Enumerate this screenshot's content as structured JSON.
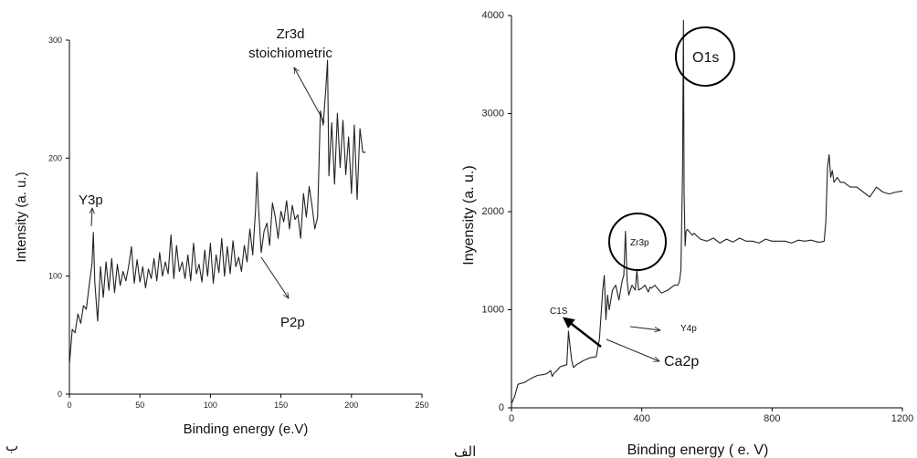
{
  "chart_data": [
    {
      "type": "line",
      "panel_label": "ب",
      "xlabel": "Binding energy (e.V)",
      "ylabel": "Intensity (a. u.)",
      "xlim": [
        0,
        250
      ],
      "ylim": [
        0,
        300
      ],
      "xticks": [
        0,
        50,
        100,
        150,
        200,
        250
      ],
      "yticks": [
        0,
        100,
        200,
        300
      ],
      "grid": false,
      "series": [
        {
          "x": [
            0,
            2,
            4,
            6,
            8,
            10,
            12,
            14,
            16,
            17,
            18,
            20,
            22,
            24,
            26,
            28,
            30,
            32,
            34,
            36,
            38,
            40,
            42,
            44,
            46,
            48,
            50,
            52,
            54,
            56,
            58,
            60,
            62,
            64,
            66,
            68,
            70,
            72,
            74,
            76,
            78,
            80,
            82,
            84,
            86,
            88,
            90,
            92,
            94,
            96,
            98,
            100,
            102,
            104,
            106,
            108,
            110,
            112,
            114,
            116,
            118,
            120,
            122,
            124,
            126,
            128,
            130,
            132,
            133,
            134,
            136,
            138,
            140,
            142,
            144,
            146,
            148,
            150,
            152,
            154,
            156,
            158,
            160,
            162,
            164,
            166,
            168,
            170,
            172,
            174,
            176,
            178,
            180,
            182,
            183,
            184,
            186,
            188,
            190,
            192,
            194,
            196,
            198,
            200,
            202,
            204,
            206,
            208,
            210
          ],
          "y": [
            25,
            55,
            52,
            68,
            60,
            75,
            72,
            92,
            110,
            137,
            95,
            62,
            108,
            82,
            112,
            88,
            115,
            86,
            110,
            92,
            104,
            96,
            108,
            125,
            94,
            114,
            95,
            108,
            90,
            106,
            98,
            115,
            96,
            120,
            100,
            112,
            102,
            135,
            98,
            126,
            104,
            112,
            98,
            118,
            96,
            128,
            102,
            110,
            95,
            122,
            100,
            128,
            94,
            118,
            103,
            132,
            100,
            125,
            102,
            130,
            108,
            116,
            104,
            126,
            112,
            140,
            118,
            156,
            188,
            160,
            120,
            138,
            145,
            126,
            162,
            150,
            132,
            155,
            146,
            164,
            140,
            160,
            148,
            152,
            132,
            170,
            150,
            176,
            160,
            140,
            150,
            240,
            228,
            262,
            283,
            185,
            230,
            178,
            238,
            192,
            232,
            186,
            218,
            170,
            228,
            165,
            225,
            205,
            205
          ]
        }
      ],
      "annotations": [
        {
          "text": "Zr3d",
          "line2": "stoichiometric"
        },
        {
          "text": "Y3p"
        },
        {
          "text": "P2p"
        }
      ]
    },
    {
      "type": "line",
      "panel_label": "الف",
      "xlabel": "Binding energy ( e. V)",
      "ylabel": "Inyensity (a. u.)",
      "xlim": [
        0,
        1200
      ],
      "ylim": [
        0,
        4000
      ],
      "xticks": [
        0,
        400,
        800,
        1200
      ],
      "yticks": [
        0,
        1000,
        2000,
        3000,
        4000
      ],
      "grid": false,
      "series": [
        {
          "x": [
            0,
            10,
            20,
            40,
            60,
            80,
            100,
            110,
            120,
            125,
            130,
            140,
            150,
            160,
            170,
            175,
            180,
            185,
            190,
            200,
            210,
            220,
            240,
            260,
            270,
            280,
            285,
            290,
            295,
            300,
            310,
            320,
            330,
            340,
            345,
            350,
            355,
            360,
            370,
            380,
            385,
            390,
            400,
            410,
            420,
            425,
            430,
            440,
            460,
            480,
            500,
            510,
            515,
            520,
            525,
            528,
            530,
            533,
            536,
            540,
            545,
            550,
            555,
            560,
            580,
            600,
            620,
            640,
            660,
            680,
            700,
            720,
            740,
            760,
            780,
            800,
            820,
            840,
            860,
            880,
            900,
            920,
            940,
            950,
            960,
            965,
            970,
            975,
            980,
            985,
            990,
            1000,
            1010,
            1020,
            1040,
            1060,
            1080,
            1100,
            1120,
            1140,
            1160,
            1180,
            1200
          ],
          "y": [
            40,
            120,
            240,
            260,
            300,
            330,
            340,
            350,
            380,
            320,
            350,
            380,
            420,
            430,
            440,
            780,
            620,
            480,
            410,
            440,
            460,
            480,
            510,
            520,
            700,
            1200,
            1350,
            900,
            1150,
            1000,
            1200,
            1250,
            1100,
            1300,
            1350,
            1800,
            1300,
            1150,
            1250,
            1200,
            1400,
            1200,
            1220,
            1250,
            1180,
            1230,
            1220,
            1250,
            1170,
            1200,
            1250,
            1250,
            1280,
            1400,
            2400,
            3950,
            2200,
            1650,
            1800,
            1820,
            1800,
            1780,
            1760,
            1780,
            1720,
            1700,
            1730,
            1680,
            1720,
            1690,
            1730,
            1700,
            1700,
            1680,
            1720,
            1700,
            1700,
            1700,
            1680,
            1710,
            1700,
            1710,
            1690,
            1690,
            1700,
            1900,
            2450,
            2580,
            2350,
            2420,
            2300,
            2350,
            2300,
            2300,
            2250,
            2250,
            2200,
            2150,
            2250,
            2200,
            2180,
            2200,
            2210
          ]
        }
      ],
      "annotations": [
        {
          "text": "O1s"
        },
        {
          "text": "Zr3p"
        },
        {
          "text": "C1S"
        },
        {
          "text": "Y4p"
        },
        {
          "text": "Ca2p"
        }
      ]
    }
  ]
}
